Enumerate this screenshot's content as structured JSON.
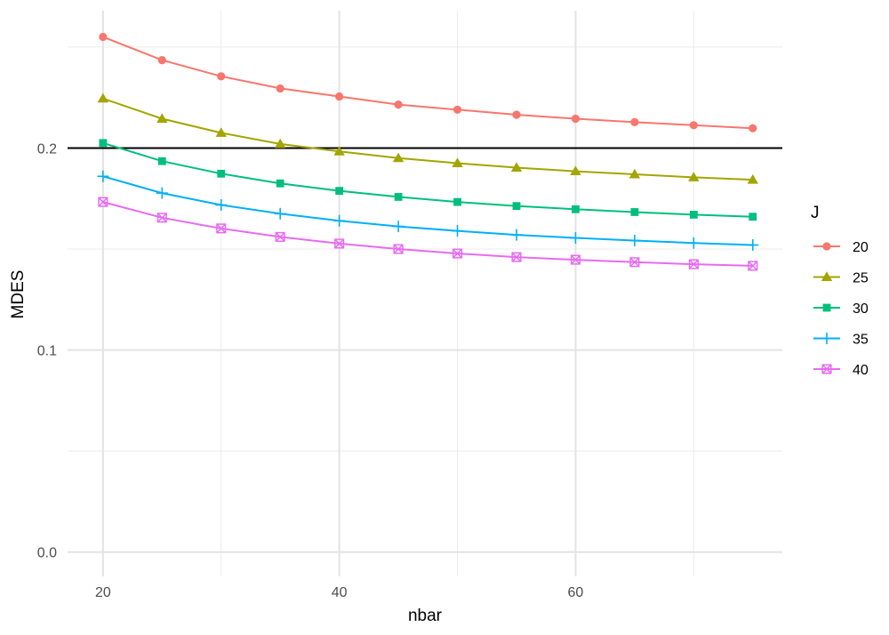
{
  "chart_data": {
    "type": "line",
    "title": "",
    "xlabel": "nbar",
    "ylabel": "MDES",
    "x": [
      20,
      25,
      30,
      35,
      40,
      45,
      50,
      55,
      60,
      65,
      70,
      75
    ],
    "xlim": [
      17,
      77.5
    ],
    "ylim": [
      -0.012,
      0.268
    ],
    "x_ticks": [
      20,
      40,
      60
    ],
    "x_tick_labels": [
      "20",
      "40",
      "60"
    ],
    "x_minor_ticks": [
      30,
      50,
      70
    ],
    "y_ticks": [
      0.0,
      0.1,
      0.2
    ],
    "y_tick_labels": [
      "0.0",
      "0.1",
      "0.2"
    ],
    "y_minor_ticks": [
      0.05,
      0.15,
      0.25
    ],
    "grid": true,
    "reference_line": {
      "y": 0.2,
      "color": "#000000"
    },
    "legend": {
      "title": "J",
      "position": "right"
    },
    "series": [
      {
        "name": "20",
        "color": "#F8766D",
        "marker": "circle",
        "values": [
          0.255,
          0.2435,
          0.2355,
          0.2295,
          0.2255,
          0.2215,
          0.219,
          0.2165,
          0.2145,
          0.2128,
          0.2113,
          0.2098
        ]
      },
      {
        "name": "25",
        "color": "#A3A500",
        "marker": "triangle",
        "values": [
          0.2245,
          0.2145,
          0.2075,
          0.202,
          0.1983,
          0.195,
          0.1925,
          0.1903,
          0.1885,
          0.187,
          0.1855,
          0.1843
        ]
      },
      {
        "name": "30",
        "color": "#00BF7D",
        "marker": "square",
        "values": [
          0.2025,
          0.1935,
          0.1873,
          0.1825,
          0.1788,
          0.1758,
          0.1733,
          0.1713,
          0.1697,
          0.1683,
          0.167,
          0.166
        ]
      },
      {
        "name": "35",
        "color": "#00B0F6",
        "marker": "plus",
        "values": [
          0.186,
          0.1777,
          0.1718,
          0.1675,
          0.164,
          0.1612,
          0.159,
          0.157,
          0.1555,
          0.1542,
          0.153,
          0.152
        ]
      },
      {
        "name": "40",
        "color": "#E76BF3",
        "marker": "boxcross",
        "values": [
          0.1733,
          0.1655,
          0.1602,
          0.156,
          0.1527,
          0.15,
          0.1478,
          0.146,
          0.1447,
          0.1435,
          0.1425,
          0.1417
        ]
      }
    ]
  }
}
